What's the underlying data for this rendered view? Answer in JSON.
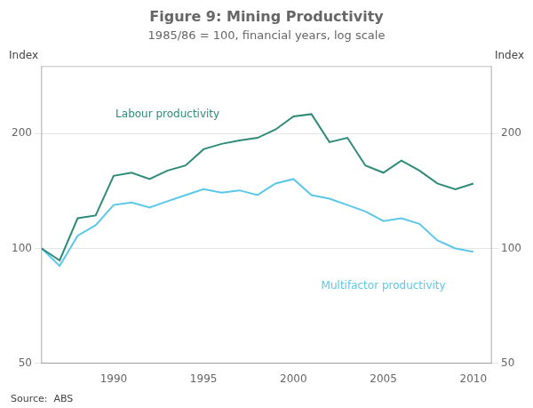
{
  "chart_data": {
    "type": "line",
    "title": "Figure 9: Mining Productivity",
    "subtitle": "1985/86 = 100, financial years, log scale",
    "ylabel": "Index",
    "y2label": "Index",
    "source": "Source:  ABS",
    "log": "y",
    "grid": "y",
    "x": [
      1986,
      1987,
      1988,
      1989,
      1990,
      1991,
      1992,
      1993,
      1994,
      1995,
      1996,
      1997,
      1998,
      1999,
      2000,
      2001,
      2002,
      2003,
      2004,
      2005,
      2006,
      2007,
      2008,
      2009,
      2010
    ],
    "xlim": [
      1986,
      2011
    ],
    "xticks": [
      1990,
      1995,
      2000,
      2005,
      2010
    ],
    "ylim": [
      50,
      300
    ],
    "yticks": [
      50,
      100,
      200
    ],
    "y2lim": [
      50,
      300
    ],
    "y2ticks": [
      50,
      100,
      200
    ],
    "series": [
      {
        "color": "#2e8b7a",
        "values": [
          100,
          93,
          120,
          122,
          155,
          158,
          152,
          160,
          165,
          182,
          188,
          192,
          195,
          205,
          222,
          225,
          190,
          195,
          165,
          158,
          170,
          160,
          148,
          143,
          148
        ]
      },
      {
        "color": "#5bc8e8",
        "values": [
          100,
          90,
          108,
          115,
          130,
          132,
          128,
          133,
          138,
          143,
          140,
          142,
          138,
          148,
          152,
          138,
          135,
          130,
          125,
          118,
          120,
          116,
          105,
          100,
          98
        ]
      }
    ],
    "annotations": [
      {
        "text": "Labour productivity",
        "x": 1993,
        "y": 215,
        "color": "#2e8b7a",
        "anchor": "bottom"
      },
      {
        "text": "Multifactor productivity",
        "x": 2005,
        "y": 83,
        "color": "#5bc8e8",
        "anchor": "top"
      }
    ]
  }
}
